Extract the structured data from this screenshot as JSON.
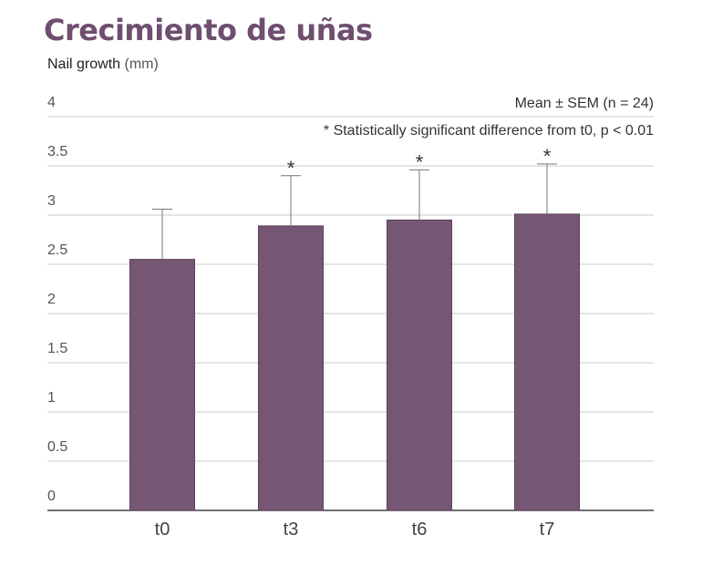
{
  "chart_data": {
    "type": "bar",
    "title": "Crecimiento de uñas",
    "ylabel": "Nail growth",
    "ylabel_unit": "(mm)",
    "categories": [
      "t0",
      "t3",
      "t6",
      "t7"
    ],
    "values": [
      2.55,
      2.89,
      2.95,
      3.01
    ],
    "error_upper": [
      3.06,
      3.4,
      3.46,
      3.52
    ],
    "significant": [
      false,
      true,
      true,
      true
    ],
    "significance_marker": "*",
    "ylim": [
      0,
      4
    ],
    "yticks": [
      "0",
      "0.5",
      "1",
      "1.5",
      "2",
      "2.5",
      "3",
      "3.5",
      "4"
    ],
    "grid": true,
    "annotations": [
      "Mean ± SEM (n = 24)",
      "* Statistically significant difference from t0, p < 0.01"
    ],
    "colors": {
      "bar": "#755673",
      "title": "#6f4f70",
      "grid": "#c8c8c8"
    }
  }
}
